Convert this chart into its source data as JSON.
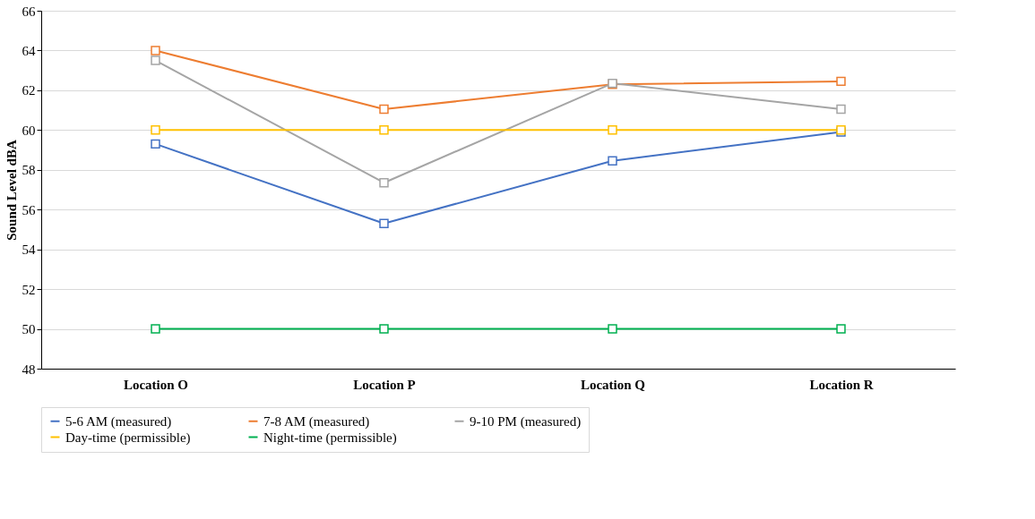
{
  "chart_data": {
    "type": "line",
    "ylabel": "Sound Level dBA",
    "categories": [
      "Location O",
      "Location P",
      "Location Q",
      "Location R"
    ],
    "series": [
      {
        "name": "5-6 AM (measured)",
        "color": "#4472c4",
        "values": [
          59.3,
          55.3,
          58.45,
          59.9
        ]
      },
      {
        "name": "7-8 AM (measured)",
        "color": "#ed7d31",
        "values": [
          64.0,
          61.05,
          62.3,
          62.45
        ]
      },
      {
        "name": "9-10 PM (measured)",
        "color": "#a5a5a5",
        "values": [
          63.5,
          57.35,
          62.35,
          61.05
        ]
      },
      {
        "name": "Day-time (permissible)",
        "color": "#ffc000",
        "values": [
          60,
          60,
          60,
          60
        ]
      },
      {
        "name": "Night-time (permissible)",
        "color": "#00b050",
        "values": [
          50,
          50,
          50,
          50
        ]
      }
    ],
    "ylim": [
      48,
      66
    ],
    "yticks": [
      48,
      50,
      52,
      54,
      56,
      58,
      60,
      62,
      64,
      66
    ],
    "grid": "y",
    "legend": "bottom",
    "marker": "square",
    "line_style": "solid"
  }
}
